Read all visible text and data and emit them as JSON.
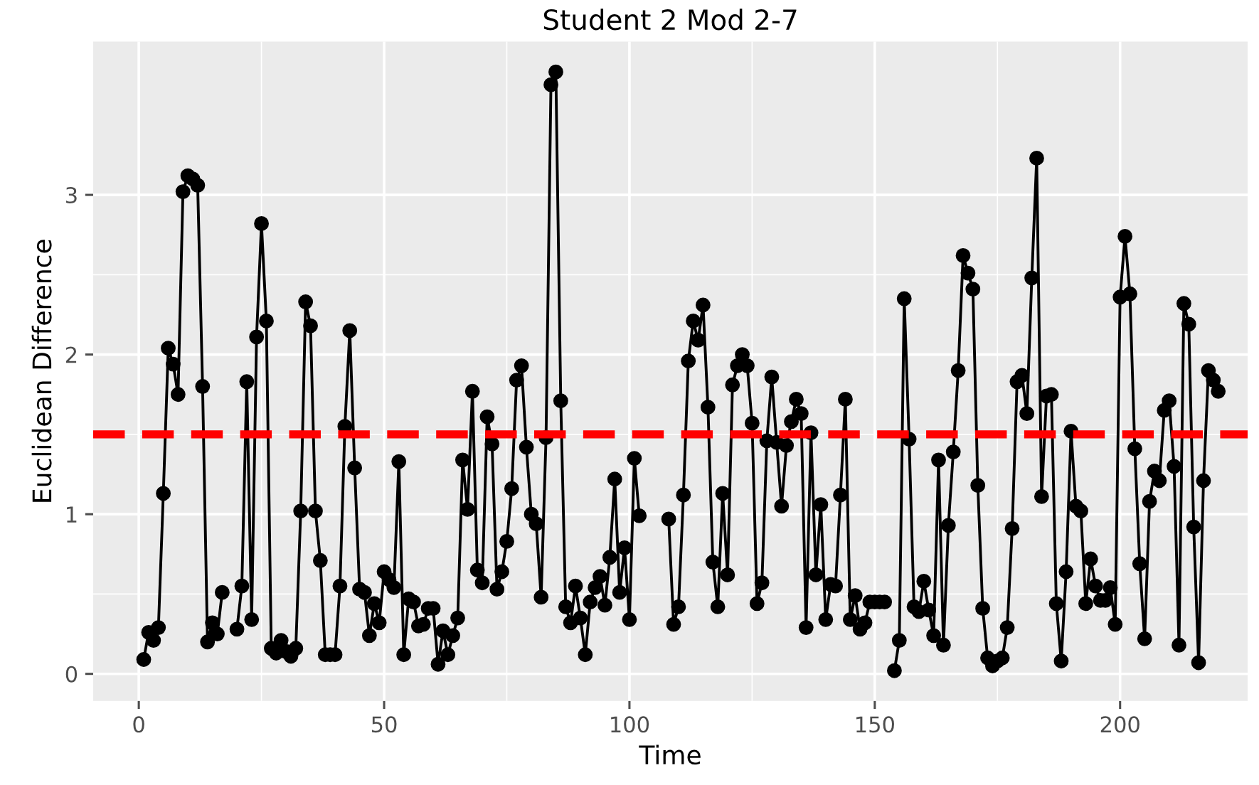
{
  "chart_data": {
    "type": "line",
    "title": "Student 2 Mod 2-7",
    "xlabel": "Time",
    "ylabel": "Euclidean Difference",
    "xlim": [
      -9.3,
      226
    ],
    "ylim": [
      -0.17,
      3.96
    ],
    "xticks": [
      0,
      50,
      100,
      150,
      200
    ],
    "yticks": [
      0,
      1,
      2,
      3
    ],
    "grid": true,
    "marker": "circle",
    "line_style": "solid",
    "ref_lines": [
      {
        "axis": "y",
        "value": 1.5,
        "color": "#ff0000",
        "line_style": "dashed"
      }
    ],
    "series": [
      {
        "color": "#000000",
        "x": [
          1,
          2,
          3,
          4,
          5,
          6,
          7,
          8,
          9,
          10,
          11,
          12,
          13,
          14,
          15,
          16,
          17,
          18,
          19,
          20,
          21,
          22,
          23,
          24,
          25,
          26,
          27,
          28,
          29,
          30,
          31,
          32,
          33,
          34,
          35,
          36,
          37,
          38,
          39,
          40,
          41,
          42,
          43,
          44,
          45,
          46,
          47,
          48,
          49,
          50,
          51,
          52,
          53,
          54,
          55,
          56,
          57,
          58,
          59,
          60,
          61,
          62,
          63,
          64,
          65,
          66,
          67,
          68,
          69,
          70,
          71,
          72,
          73,
          74,
          75,
          76,
          77,
          78,
          79,
          80,
          81,
          82,
          83,
          84,
          85,
          86,
          87,
          88,
          89,
          90,
          91,
          92,
          93,
          94,
          95,
          96,
          97,
          98,
          99,
          100,
          101,
          102,
          103,
          104,
          105,
          106,
          107,
          108,
          109,
          110,
          111,
          112,
          113,
          114,
          115,
          116,
          117,
          118,
          119,
          120,
          121,
          122,
          123,
          124,
          125,
          126,
          127,
          128,
          129,
          130,
          131,
          132,
          133,
          134,
          135,
          136,
          137,
          138,
          139,
          140,
          141,
          142,
          143,
          144,
          145,
          146,
          147,
          148,
          149,
          150,
          151,
          152,
          153,
          154,
          155,
          156,
          157,
          158,
          159,
          160,
          161,
          162,
          163,
          164,
          165,
          166,
          167,
          168,
          169,
          170,
          171,
          172,
          173,
          174,
          175,
          176,
          177,
          178,
          179,
          180,
          181,
          182,
          183,
          184,
          185,
          186,
          187,
          188,
          189,
          190,
          191,
          192,
          193,
          194,
          195,
          196,
          197,
          198,
          199,
          200,
          201,
          202,
          203,
          204,
          205,
          206,
          207,
          208,
          209,
          210,
          211,
          212,
          213,
          214,
          215,
          216,
          217,
          218,
          219,
          220
        ],
        "values": [
          0.09,
          0.26,
          0.21,
          0.29,
          1.13,
          2.04,
          1.94,
          1.75,
          3.02,
          3.12,
          3.1,
          3.06,
          1.8,
          0.2,
          0.32,
          0.25,
          0.51,
          null,
          null,
          0.28,
          0.55,
          1.83,
          0.34,
          2.11,
          2.82,
          2.21,
          0.16,
          0.13,
          0.21,
          0.14,
          0.11,
          0.16,
          1.02,
          2.33,
          2.18,
          1.02,
          0.71,
          0.12,
          0.12,
          0.12,
          0.55,
          1.55,
          2.15,
          1.29,
          0.53,
          0.51,
          0.24,
          0.44,
          0.32,
          0.64,
          0.59,
          0.54,
          1.33,
          0.12,
          0.47,
          0.45,
          0.3,
          0.31,
          0.41,
          0.41,
          0.06,
          0.27,
          0.12,
          0.24,
          0.35,
          1.34,
          1.03,
          1.77,
          0.65,
          0.57,
          1.61,
          1.44,
          0.53,
          0.64,
          0.83,
          1.16,
          1.84,
          1.93,
          1.42,
          1.0,
          0.94,
          0.48,
          1.48,
          3.69,
          3.77,
          1.71,
          0.42,
          0.32,
          0.55,
          0.35,
          0.12,
          0.45,
          0.54,
          0.61,
          0.43,
          0.73,
          1.22,
          0.51,
          0.79,
          0.34,
          1.35,
          0.99,
          null,
          null,
          null,
          null,
          null,
          0.97,
          0.31,
          0.42,
          1.12,
          1.96,
          2.21,
          2.09,
          2.31,
          1.67,
          0.7,
          0.42,
          1.13,
          0.62,
          1.81,
          1.93,
          2.0,
          1.93,
          1.57,
          0.44,
          0.57,
          1.46,
          1.86,
          1.45,
          1.05,
          1.43,
          1.58,
          1.72,
          1.63,
          0.29,
          1.51,
          0.62,
          1.06,
          0.34,
          0.56,
          0.55,
          1.12,
          1.72,
          0.34,
          0.49,
          0.28,
          0.32,
          0.45,
          0.45,
          0.45,
          0.45,
          null,
          0.02,
          0.21,
          2.35,
          1.47,
          0.42,
          0.39,
          0.58,
          0.4,
          0.24,
          1.34,
          0.18,
          0.93,
          1.39,
          1.9,
          2.62,
          2.51,
          2.41,
          1.18,
          0.41,
          0.1,
          0.05,
          0.08,
          0.1,
          0.29,
          0.91,
          1.83,
          1.87,
          1.63,
          2.48,
          3.23,
          1.11,
          1.74,
          1.75,
          0.44,
          0.08,
          0.64,
          1.52,
          1.05,
          1.02,
          0.44,
          0.72,
          0.55,
          0.46,
          0.46,
          0.54,
          0.31,
          2.36,
          2.74,
          2.38,
          1.41,
          0.69,
          0.22,
          1.08,
          1.27,
          1.21,
          1.65,
          1.71,
          1.3,
          0.18,
          2.32,
          2.19,
          0.92,
          0.07,
          1.21,
          1.9,
          1.84,
          1.77
        ]
      }
    ]
  }
}
